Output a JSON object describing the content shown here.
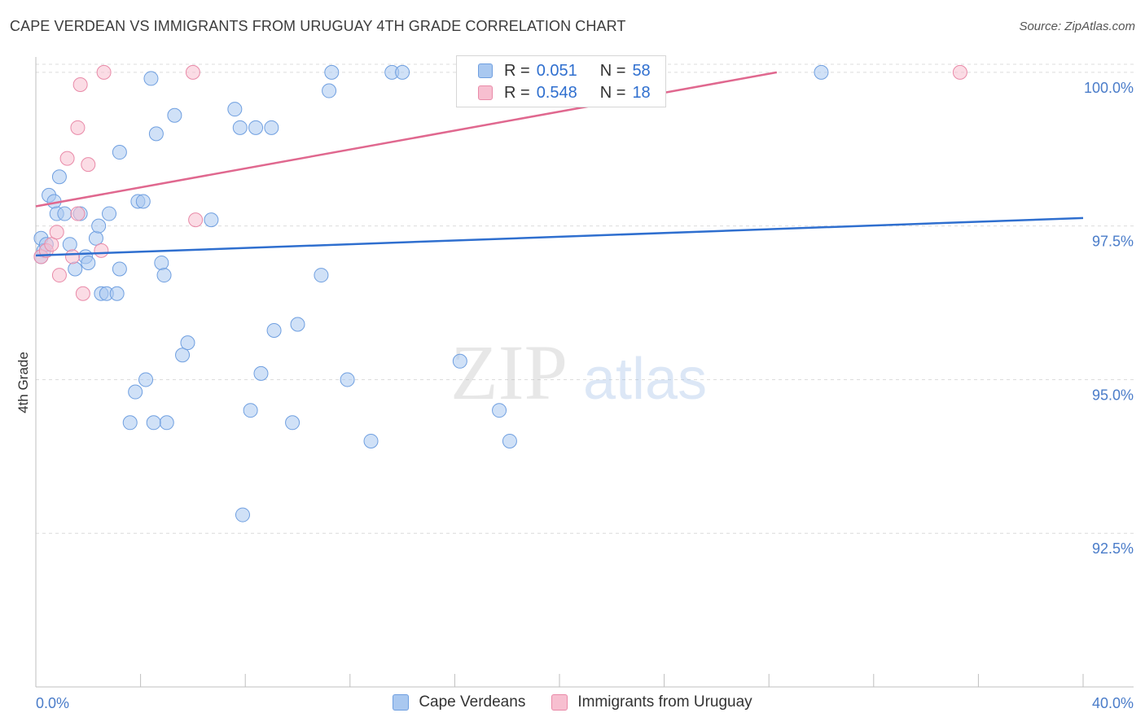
{
  "title": "CAPE VERDEAN VS IMMIGRANTS FROM URUGUAY 4TH GRADE CORRELATION CHART",
  "source": "Source: ZipAtlas.com",
  "watermark": {
    "zip": "ZIP",
    "atlas": "atlas"
  },
  "legend": {
    "rows": [
      {
        "r_label": "R =",
        "r_value": "0.051",
        "n_label": "N =",
        "n_value": "58",
        "color": "#a9c8f0",
        "border": "#6f9fe0"
      },
      {
        "r_label": "R =",
        "r_value": "0.548",
        "n_label": "N =",
        "n_value": "18",
        "color": "#f7bfd0",
        "border": "#e98aa8"
      }
    ]
  },
  "bottom_legend": [
    {
      "label": "Cape Verdeans",
      "color": "#a9c8f0",
      "border": "#6f9fe0"
    },
    {
      "label": "Immigrants from Uruguay",
      "color": "#f7bfd0",
      "border": "#e98aa8"
    }
  ],
  "chart_data": {
    "type": "scatter",
    "title": "CAPE VERDEAN VS IMMIGRANTS FROM URUGUAY 4TH GRADE CORRELATION CHART",
    "xlabel": "",
    "ylabel": "4th Grade",
    "xlim": [
      0,
      40
    ],
    "ylim": [
      90.0,
      100.25
    ],
    "x_tick_labels": [
      "0.0%",
      "40.0%"
    ],
    "y_ticks": [
      92.5,
      95.0,
      97.5,
      100.0
    ],
    "y_tick_labels": [
      "92.5%",
      "95.0%",
      "97.5%",
      "100.0%"
    ],
    "series": [
      {
        "name": "Cape Verdeans",
        "color": "#a9c8f0",
        "stroke": "#6f9fe0",
        "trend_color": "#2f6fcf",
        "trend": [
          [
            0,
            97.02
          ],
          [
            40,
            97.63
          ]
        ],
        "points": [
          [
            0.2,
            97.3
          ],
          [
            0.3,
            97.1
          ],
          [
            0.5,
            98.0
          ],
          [
            0.7,
            97.9
          ],
          [
            0.8,
            97.7
          ],
          [
            0.9,
            98.3
          ],
          [
            1.1,
            97.7
          ],
          [
            1.3,
            97.2
          ],
          [
            1.5,
            96.8
          ],
          [
            1.7,
            97.7
          ],
          [
            1.9,
            97.0
          ],
          [
            2.0,
            96.9
          ],
          [
            2.3,
            97.3
          ],
          [
            2.4,
            97.5
          ],
          [
            2.5,
            96.4
          ],
          [
            2.7,
            96.4
          ],
          [
            2.8,
            97.7
          ],
          [
            3.1,
            96.4
          ],
          [
            3.2,
            98.7
          ],
          [
            3.2,
            96.8
          ],
          [
            3.6,
            94.3
          ],
          [
            3.8,
            94.8
          ],
          [
            3.9,
            97.9
          ],
          [
            4.1,
            97.9
          ],
          [
            4.2,
            95.0
          ],
          [
            4.4,
            99.9
          ],
          [
            4.6,
            99.0
          ],
          [
            4.8,
            96.9
          ],
          [
            4.9,
            96.7
          ],
          [
            5.0,
            94.3
          ],
          [
            5.3,
            99.3
          ],
          [
            5.6,
            95.4
          ],
          [
            5.8,
            95.6
          ],
          [
            6.7,
            97.6
          ],
          [
            7.6,
            99.4
          ],
          [
            7.8,
            99.1
          ],
          [
            7.9,
            92.8
          ],
          [
            8.2,
            94.5
          ],
          [
            8.4,
            99.1
          ],
          [
            8.6,
            95.1
          ],
          [
            9.0,
            99.1
          ],
          [
            9.1,
            95.8
          ],
          [
            9.8,
            94.3
          ],
          [
            10.0,
            95.9
          ],
          [
            10.9,
            96.7
          ],
          [
            11.2,
            99.7
          ],
          [
            11.3,
            100.0
          ],
          [
            11.9,
            95.0
          ],
          [
            12.8,
            94.0
          ],
          [
            13.6,
            100.0
          ],
          [
            14.0,
            100.0
          ],
          [
            16.2,
            95.3
          ],
          [
            17.7,
            94.5
          ],
          [
            18.1,
            94.0
          ],
          [
            30.0,
            100.0
          ],
          [
            0.2,
            97.0
          ],
          [
            0.4,
            97.2
          ],
          [
            4.5,
            94.3
          ]
        ]
      },
      {
        "name": "Immigrants from Uruguay",
        "color": "#f7bfd0",
        "stroke": "#e98aa8",
        "trend_color": "#e0688f",
        "trend": [
          [
            0,
            97.82
          ],
          [
            28.3,
            100.0
          ]
        ],
        "points": [
          [
            0.2,
            97.0
          ],
          [
            0.4,
            97.1
          ],
          [
            0.6,
            97.2
          ],
          [
            0.8,
            97.4
          ],
          [
            0.9,
            96.7
          ],
          [
            1.2,
            98.6
          ],
          [
            1.4,
            97.0
          ],
          [
            1.6,
            97.7
          ],
          [
            1.6,
            99.1
          ],
          [
            1.7,
            99.8
          ],
          [
            1.8,
            96.4
          ],
          [
            2.0,
            98.5
          ],
          [
            2.5,
            97.1
          ],
          [
            2.6,
            100.0
          ],
          [
            6.0,
            100.0
          ],
          [
            6.1,
            97.6
          ],
          [
            23.6,
            100.0
          ],
          [
            35.3,
            100.0
          ]
        ]
      }
    ]
  }
}
